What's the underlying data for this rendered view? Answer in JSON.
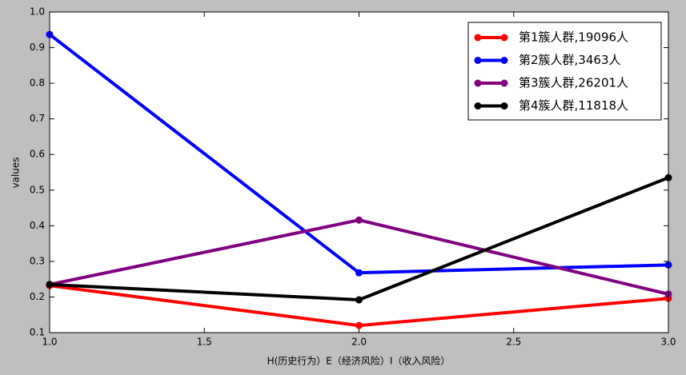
{
  "chart_data": {
    "type": "line",
    "x": [
      1.0,
      2.0,
      3.0
    ],
    "xlabel": "H(历史行为）E（经济风险）I（收入风险）",
    "ylabel": "values",
    "xlim": [
      1.0,
      3.0
    ],
    "xticks": [
      {
        "value": 1,
        "label": "1.0"
      },
      1.5,
      {
        "value": 2,
        "label": "2.0"
      },
      2.5,
      {
        "value": 3,
        "label": "3.0"
      }
    ],
    "ylim": [
      0.1,
      1.0
    ],
    "yticks": [
      0.1,
      0.2,
      0.3,
      0.4,
      0.5,
      0.6,
      0.7,
      0.8,
      0.9,
      {
        "value": 1,
        "label": "1.0"
      }
    ],
    "legend": "upper right",
    "series": [
      {
        "name": "第1簇人群,19096人",
        "color": "#ff0000",
        "values": [
          0.232,
          0.12,
          0.196
        ]
      },
      {
        "name": "第2簇人群,3463人",
        "color": "#0000ff",
        "values": [
          0.937,
          0.268,
          0.29
        ]
      },
      {
        "name": "第3簇人群,26201人",
        "color": "#800080",
        "values": [
          0.235,
          0.416,
          0.208
        ]
      },
      {
        "name": "第4簇人群,11818人",
        "color": "#000000",
        "values": [
          0.235,
          0.192,
          0.535
        ]
      }
    ]
  }
}
